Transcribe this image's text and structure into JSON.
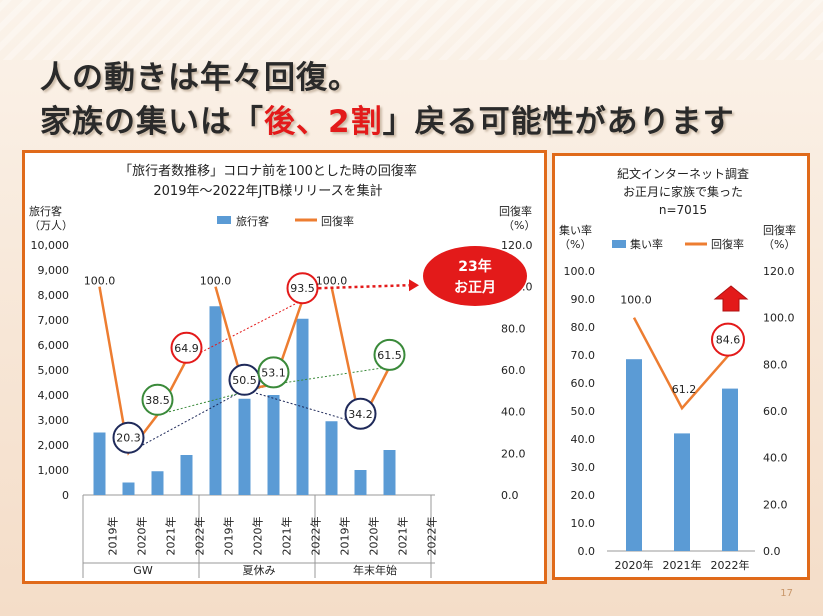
{
  "slide": {
    "title_line1": "人の動きは年々回復。",
    "title_line2_a": "家族の集いは「",
    "title_line2_red": "後、2割",
    "title_line2_b": "」戻る可能性があります",
    "page_number": "17"
  },
  "callout": {
    "line1": "23年",
    "line2": "お正月"
  },
  "colors": {
    "bar": "#5b9bd5",
    "line": "#ed7d31",
    "accent": "#e06a1a",
    "red_circle": "#e31a1a",
    "green_circle": "#3a8a3a",
    "navy_circle": "#1f2a5a"
  },
  "chart_data": [
    {
      "type": "bar+line",
      "title_line1": "「旅行者数推移」コロナ前を100とした時の回復率",
      "title_line2": "2019年～2022年JTB様リリースを集計",
      "ylabel_left_1": "旅行客",
      "ylabel_left_2": "（万人）",
      "ylabel_right_1": "回復率",
      "ylabel_right_2": "（%）",
      "legend_bar": "旅行客",
      "legend_line": "回復率",
      "ylim_left": [
        0,
        10000
      ],
      "yticks_left": [
        "0",
        "1,000",
        "2,000",
        "3,000",
        "4,000",
        "5,000",
        "6,000",
        "7,000",
        "8,000",
        "9,000",
        "10,000"
      ],
      "ylim_right": [
        0,
        120
      ],
      "yticks_right": [
        "0.0",
        "20.0",
        "40.0",
        "60.0",
        "80.0",
        "100.0",
        "120.0"
      ],
      "groups": [
        {
          "name": "GW",
          "categories": [
            "2019年",
            "2020年",
            "2021年",
            "2022年"
          ],
          "travelers": [
            2500,
            500,
            950,
            1600
          ],
          "recovery": [
            100.0,
            20.3,
            38.5,
            64.9
          ],
          "recovery_labels": [
            "100.0",
            "20.3",
            "38.5",
            "64.9"
          ]
        },
        {
          "name": "夏休み",
          "categories": [
            "2019年",
            "2020年",
            "2021年",
            "2022年"
          ],
          "travelers": [
            7550,
            3850,
            4000,
            7050
          ],
          "recovery": [
            100.0,
            50.5,
            53.1,
            93.5
          ],
          "recovery_labels": [
            "100.0",
            "50.5",
            "53.1",
            "93.5"
          ]
        },
        {
          "name": "年末年始",
          "categories": [
            "2019年",
            "2020年",
            "2021年",
            "2022年"
          ],
          "travelers": [
            2950,
            1000,
            1800,
            null
          ],
          "recovery": [
            100.0,
            34.2,
            61.5,
            null
          ],
          "recovery_labels": [
            "100.0",
            "34.2",
            "61.5",
            ""
          ]
        }
      ]
    },
    {
      "type": "bar+line",
      "title_line1": "紀文インターネット調査",
      "title_line2": "お正月に家族で集った",
      "title_line3": "n=7015",
      "ylabel_left_1": "集い率",
      "ylabel_left_2": "（%）",
      "ylabel_right_1": "回復率",
      "ylabel_right_2": "（%）",
      "legend_bar": "集い率",
      "legend_line": "回復率",
      "ylim_left": [
        0,
        100
      ],
      "yticks_left": [
        "0.0",
        "10.0",
        "20.0",
        "30.0",
        "40.0",
        "50.0",
        "60.0",
        "70.0",
        "80.0",
        "90.0",
        "100.0"
      ],
      "ylim_right": [
        0,
        120
      ],
      "yticks_right": [
        "0.0",
        "20.0",
        "40.0",
        "60.0",
        "80.0",
        "100.0",
        "120.0"
      ],
      "categories": [
        "2020年",
        "2021年",
        "2022年"
      ],
      "gathering_rate": [
        68.5,
        42.0,
        58.0
      ],
      "recovery": [
        100.0,
        61.2,
        84.6
      ],
      "recovery_labels": [
        "100.0",
        "61.2",
        "84.6"
      ]
    }
  ]
}
